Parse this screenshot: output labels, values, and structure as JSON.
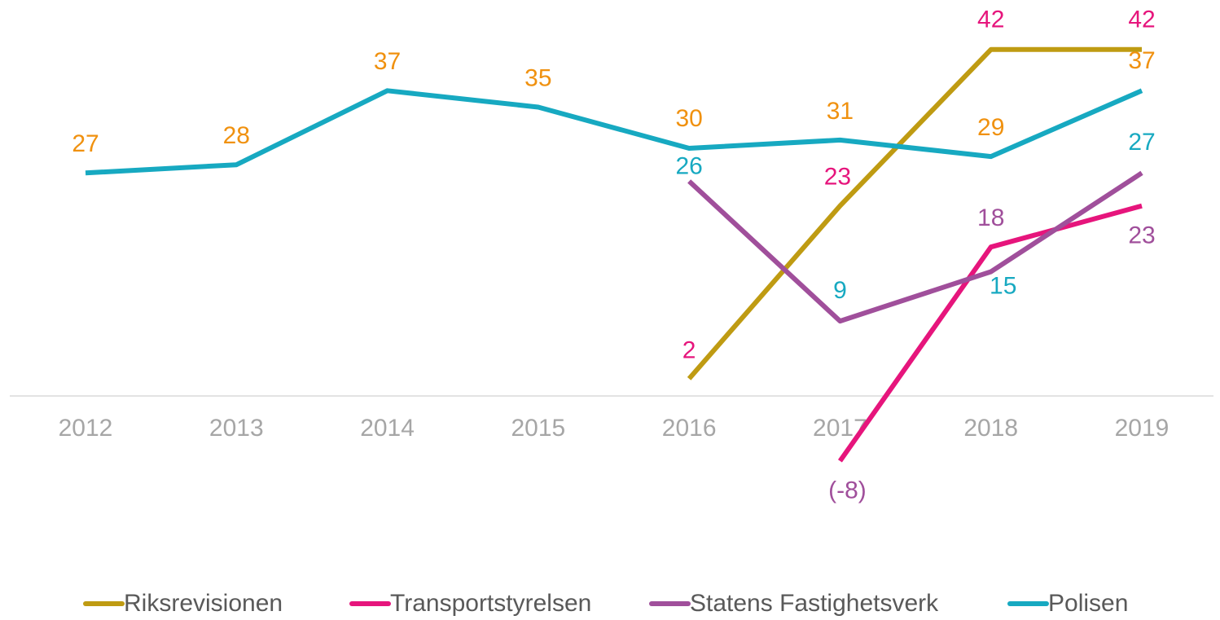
{
  "chart_data": {
    "type": "line",
    "categories": [
      "2012",
      "2013",
      "2014",
      "2015",
      "2016",
      "2017",
      "2018",
      "2019"
    ],
    "ylim": [
      -10,
      45
    ],
    "series": [
      {
        "name": "Riksrevisionen",
        "color": "#bf9b12",
        "label_color": "#e6157c",
        "values": [
          null,
          null,
          null,
          null,
          2,
          23,
          42,
          42
        ]
      },
      {
        "name": "Transportstyrelsen",
        "color": "#e6157c",
        "label_color": "#a04f9b",
        "values": [
          null,
          null,
          null,
          null,
          null,
          -8,
          18,
          23
        ],
        "value_labels": [
          null,
          null,
          null,
          null,
          null,
          "(-8)",
          "18",
          "23"
        ]
      },
      {
        "name": "Statens Fastighetsverk",
        "color": "#a04f9b",
        "label_color": "#17a9c1",
        "values": [
          null,
          null,
          null,
          null,
          26,
          9,
          15,
          27
        ]
      },
      {
        "name": "Polisen",
        "color": "#17a9c1",
        "label_color": "#f0910f",
        "values": [
          27,
          28,
          37,
          35,
          30,
          31,
          29,
          37
        ]
      }
    ]
  }
}
